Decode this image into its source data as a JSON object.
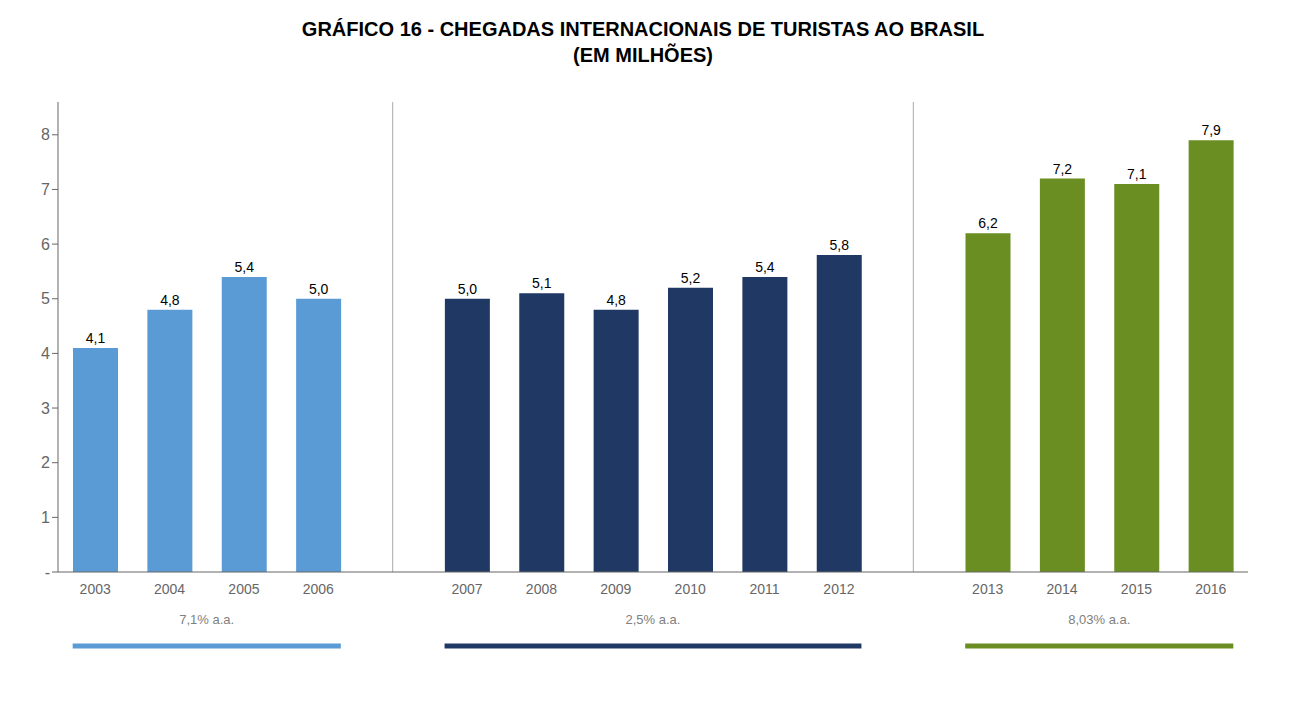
{
  "chart_data": {
    "type": "bar",
    "title": "GRÁFICO 16 - CHEGADAS INTERNACIONAIS DE TURISTAS AO BRASIL\n(EM MILHÕES)",
    "categories": [
      "2003",
      "2004",
      "2005",
      "2006",
      "2007",
      "2008",
      "2009",
      "2010",
      "2011",
      "2012",
      "2013",
      "2014",
      "2015",
      "2016"
    ],
    "values": [
      4.1,
      4.8,
      5.4,
      5.0,
      5.0,
      5.1,
      4.8,
      5.2,
      5.4,
      5.8,
      6.2,
      7.2,
      7.1,
      7.9
    ],
    "value_labels": [
      "4,1",
      "4,8",
      "5,4",
      "5,0",
      "5,0",
      "5,1",
      "4,8",
      "5,2",
      "5,4",
      "5,8",
      "6,2",
      "7,2",
      "7,1",
      "7,9"
    ],
    "colors": [
      "#5B9BD5",
      "#5B9BD5",
      "#5B9BD5",
      "#5B9BD5",
      "#1F3864",
      "#1F3864",
      "#1F3864",
      "#1F3864",
      "#1F3864",
      "#1F3864",
      "#6B8E23",
      "#6B8E23",
      "#6B8E23",
      "#6B8E23"
    ],
    "data_labels": true,
    "grid": false,
    "ylim": [
      0,
      8.6
    ],
    "yticks": [
      {
        "value": 0,
        "label": "-"
      },
      1,
      2,
      3,
      4,
      5,
      6,
      7,
      8
    ],
    "annotations": [
      {
        "text": "7,1% a.a.",
        "color": "#5B9BD5",
        "from": "2003",
        "to": "2006"
      },
      {
        "text": "2,5% a.a.",
        "color": "#1F3864",
        "from": "2007",
        "to": "2012"
      },
      {
        "text": "8,03% a.a.",
        "color": "#6B8E23",
        "from": "2013",
        "to": "2016"
      }
    ]
  }
}
